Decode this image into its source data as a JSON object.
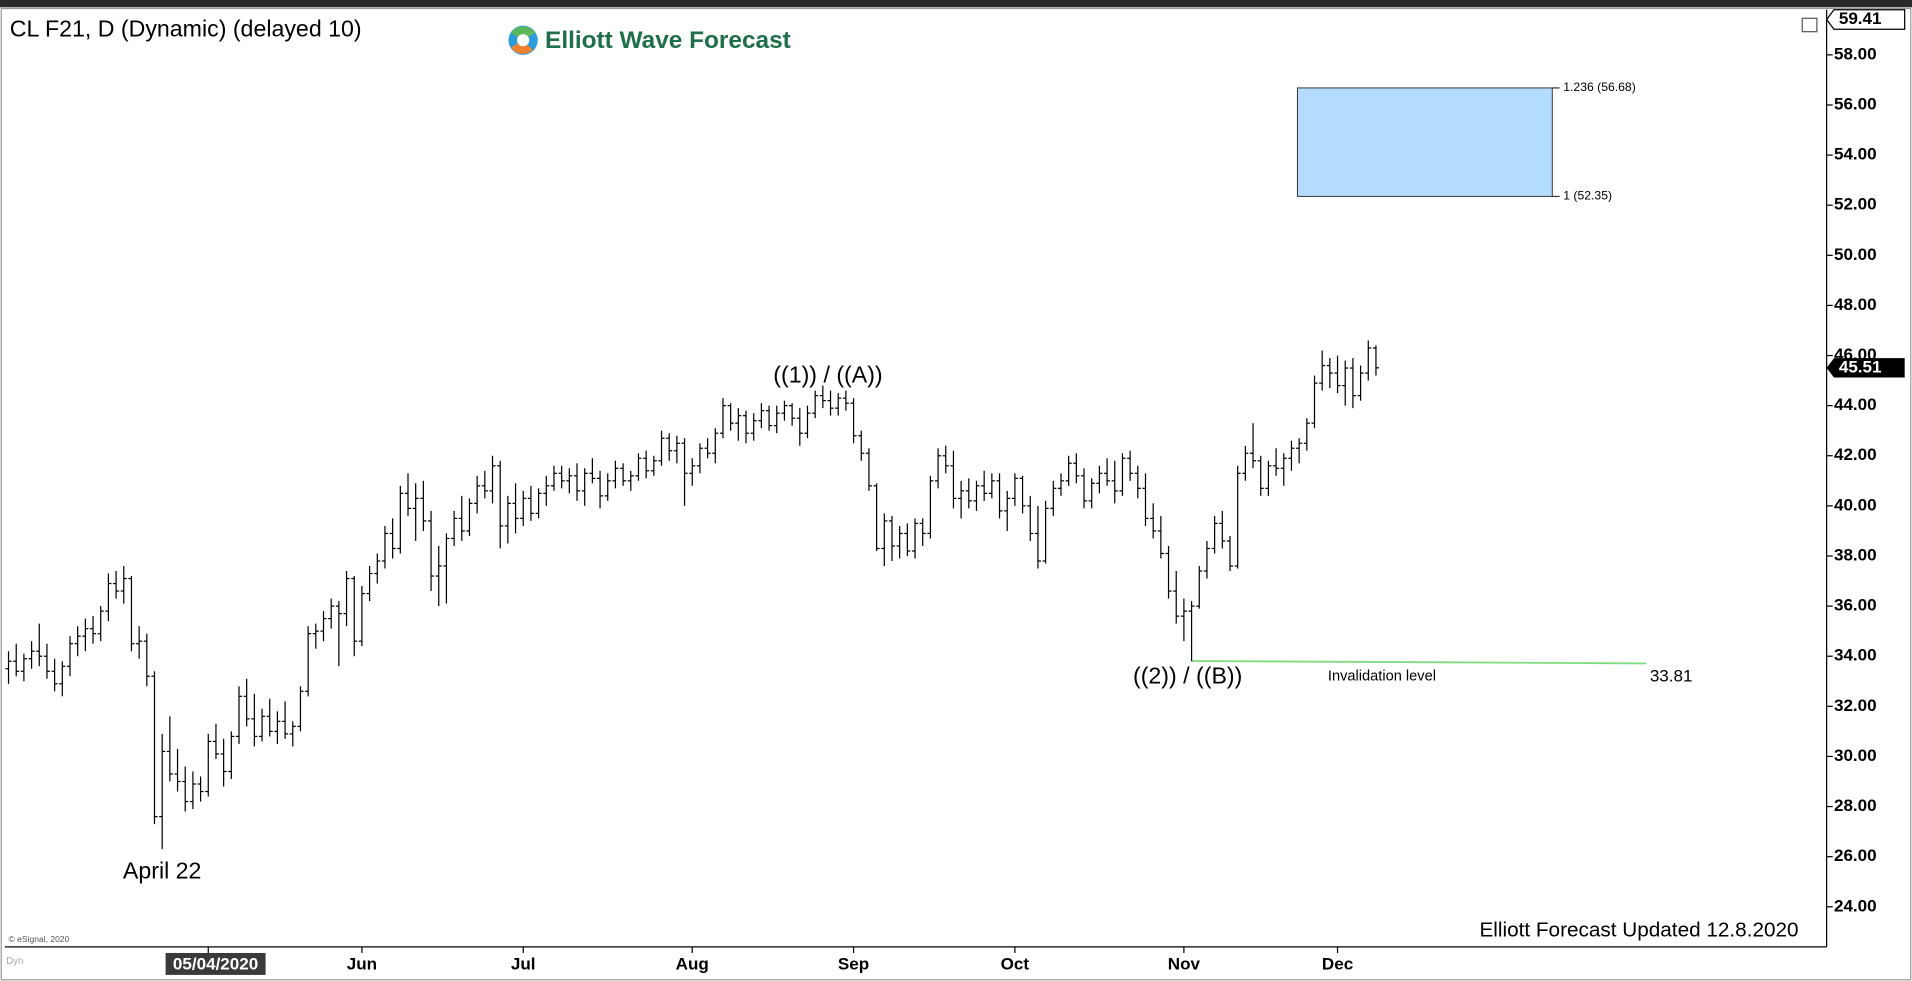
{
  "chart_data": {
    "type": "ohlc",
    "title": "CL F21, D (Dynamic) (delayed 10)",
    "logo": "Elliott Wave Forecast",
    "footer": "Elliott Forecast Updated 12.8.2020",
    "source": "© eSignal, 2020",
    "corner": "Dyn",
    "color": "#000000",
    "ylim": [
      22.4,
      59.8
    ],
    "yticks": [
      {
        "value": 24,
        "label": "24.00"
      },
      {
        "value": 26,
        "label": "26.00"
      },
      {
        "value": 28,
        "label": "28.00"
      },
      {
        "value": 30,
        "label": "30.00"
      },
      {
        "value": 32,
        "label": "32.00"
      },
      {
        "value": 34,
        "label": "34.00"
      },
      {
        "value": 36,
        "label": "36.00"
      },
      {
        "value": 38,
        "label": "38.00"
      },
      {
        "value": 40,
        "label": "40.00"
      },
      {
        "value": 42,
        "label": "42.00"
      },
      {
        "value": 44,
        "label": "44.00"
      },
      {
        "value": 46,
        "label": "46.00"
      },
      {
        "value": 48,
        "label": "48.00"
      },
      {
        "value": 50,
        "label": "50.00"
      },
      {
        "value": 52,
        "label": "52.00"
      },
      {
        "value": 54,
        "label": "54.00"
      },
      {
        "value": 56,
        "label": "56.00"
      },
      {
        "value": 58,
        "label": "58.00"
      }
    ],
    "xticks": [
      {
        "value": 26,
        "label": "05/04/2020"
      },
      {
        "value": 46,
        "label": "Jun"
      },
      {
        "value": 67,
        "label": "Jul"
      },
      {
        "value": 89,
        "label": "Aug"
      },
      {
        "value": 110,
        "label": "Sep"
      },
      {
        "value": 131,
        "label": "Oct"
      },
      {
        "value": 153,
        "label": "Nov"
      },
      {
        "value": 173,
        "label": "Dec"
      }
    ],
    "scale_high": 59.41,
    "last_price": 45.51,
    "target_box": {
      "color": "#b3dcff",
      "levels": [
        {
          "value": 56.68,
          "label": "1.236 (56.68)"
        },
        {
          "value": 52.35,
          "label": "1 (52.35)"
        }
      ]
    },
    "invalidation": {
      "value": 33.81,
      "label": "Invalidation level",
      "color": "#7ddc7d"
    },
    "annotations": [
      "April 22",
      "((1)) / ((A))",
      "((2)) / ((B))"
    ],
    "bars": [
      [
        33.5,
        34.2,
        32.9,
        33.8
      ],
      [
        33.8,
        34.5,
        33.2,
        33.4
      ],
      [
        33.4,
        34.1,
        33.0,
        33.9
      ],
      [
        33.9,
        34.6,
        33.5,
        34.2
      ],
      [
        34.2,
        35.3,
        33.6,
        34.0
      ],
      [
        34.0,
        34.5,
        33.1,
        33.4
      ],
      [
        33.4,
        33.9,
        32.6,
        32.9
      ],
      [
        32.9,
        33.8,
        32.4,
        33.6
      ],
      [
        33.6,
        34.8,
        33.2,
        34.5
      ],
      [
        34.5,
        35.2,
        34.0,
        34.8
      ],
      [
        34.8,
        35.5,
        34.2,
        35.1
      ],
      [
        35.1,
        35.6,
        34.5,
        34.9
      ],
      [
        34.9,
        36.0,
        34.6,
        35.8
      ],
      [
        35.8,
        37.3,
        35.4,
        36.9
      ],
      [
        36.9,
        37.4,
        36.3,
        36.6
      ],
      [
        36.6,
        37.6,
        36.1,
        37.1
      ],
      [
        37.1,
        37.2,
        34.2,
        34.5
      ],
      [
        34.5,
        35.2,
        33.9,
        34.6
      ],
      [
        34.6,
        34.9,
        32.8,
        33.2
      ],
      [
        33.2,
        33.4,
        27.3,
        27.6
      ],
      [
        27.6,
        30.9,
        26.3,
        30.2
      ],
      [
        30.2,
        31.6,
        29.0,
        29.3
      ],
      [
        29.3,
        30.3,
        28.6,
        29.0
      ],
      [
        29.0,
        29.6,
        27.8,
        28.2
      ],
      [
        28.2,
        29.4,
        27.9,
        28.9
      ],
      [
        28.9,
        29.2,
        28.2,
        28.6
      ],
      [
        28.6,
        30.9,
        28.4,
        30.6
      ],
      [
        30.6,
        31.3,
        29.9,
        30.1
      ],
      [
        30.1,
        30.7,
        28.8,
        29.4
      ],
      [
        29.4,
        31.0,
        29.1,
        30.8
      ],
      [
        30.8,
        32.8,
        30.5,
        32.4
      ],
      [
        32.4,
        33.1,
        31.2,
        31.5
      ],
      [
        31.5,
        32.5,
        30.4,
        30.8
      ],
      [
        30.8,
        31.9,
        30.6,
        31.6
      ],
      [
        31.6,
        32.3,
        30.8,
        31.0
      ],
      [
        31.0,
        31.8,
        30.5,
        31.4
      ],
      [
        31.4,
        32.2,
        30.7,
        30.9
      ],
      [
        30.9,
        31.4,
        30.4,
        31.2
      ],
      [
        31.2,
        32.8,
        31.0,
        32.6
      ],
      [
        32.6,
        35.2,
        32.4,
        34.9
      ],
      [
        34.9,
        35.3,
        34.3,
        35.0
      ],
      [
        35.0,
        35.8,
        34.6,
        35.5
      ],
      [
        35.5,
        36.3,
        35.1,
        36.0
      ],
      [
        36.0,
        36.2,
        33.6,
        35.7
      ],
      [
        35.7,
        37.4,
        35.2,
        37.1
      ],
      [
        37.1,
        37.2,
        34.0,
        34.6
      ],
      [
        34.6,
        36.8,
        34.4,
        36.5
      ],
      [
        36.5,
        37.6,
        36.2,
        37.3
      ],
      [
        37.3,
        38.1,
        36.9,
        37.8
      ],
      [
        37.8,
        39.2,
        37.5,
        38.9
      ],
      [
        38.9,
        39.5,
        37.9,
        38.3
      ],
      [
        38.3,
        40.8,
        38.1,
        40.5
      ],
      [
        40.5,
        41.3,
        39.6,
        39.9
      ],
      [
        39.9,
        40.9,
        38.6,
        40.3
      ],
      [
        40.3,
        41.0,
        39.0,
        39.4
      ],
      [
        39.4,
        39.8,
        36.6,
        37.2
      ],
      [
        37.2,
        38.4,
        36.0,
        37.6
      ],
      [
        37.6,
        38.9,
        36.1,
        38.7
      ],
      [
        38.7,
        39.8,
        38.4,
        39.5
      ],
      [
        39.5,
        40.4,
        38.6,
        39.0
      ],
      [
        39.0,
        40.3,
        38.8,
        40.1
      ],
      [
        40.1,
        41.2,
        39.7,
        40.8
      ],
      [
        40.8,
        41.4,
        40.3,
        40.6
      ],
      [
        40.6,
        42.0,
        40.1,
        41.6
      ],
      [
        41.6,
        41.8,
        38.3,
        39.2
      ],
      [
        39.2,
        40.4,
        38.5,
        40.1
      ],
      [
        40.1,
        40.9,
        38.9,
        39.5
      ],
      [
        39.5,
        40.6,
        39.2,
        40.3
      ],
      [
        40.3,
        40.8,
        39.4,
        39.7
      ],
      [
        39.7,
        40.7,
        39.5,
        40.5
      ],
      [
        40.5,
        41.2,
        40.0,
        40.8
      ],
      [
        40.8,
        41.6,
        40.6,
        41.3
      ],
      [
        41.3,
        41.6,
        40.7,
        41.0
      ],
      [
        41.0,
        41.5,
        40.5,
        41.2
      ],
      [
        41.2,
        41.7,
        40.2,
        40.6
      ],
      [
        40.6,
        41.5,
        40.0,
        41.3
      ],
      [
        41.3,
        41.9,
        40.9,
        41.1
      ],
      [
        41.1,
        41.4,
        39.9,
        40.4
      ],
      [
        40.4,
        41.3,
        40.2,
        41.0
      ],
      [
        41.0,
        41.8,
        40.7,
        41.5
      ],
      [
        41.5,
        41.7,
        40.8,
        41.0
      ],
      [
        41.0,
        41.4,
        40.6,
        41.2
      ],
      [
        41.2,
        42.1,
        41.0,
        41.9
      ],
      [
        41.9,
        42.2,
        41.1,
        41.4
      ],
      [
        41.4,
        42.0,
        41.2,
        41.8
      ],
      [
        41.8,
        43.0,
        41.6,
        42.7
      ],
      [
        42.7,
        42.9,
        41.8,
        42.2
      ],
      [
        42.2,
        42.8,
        41.7,
        42.5
      ],
      [
        42.5,
        42.7,
        40.0,
        41.3
      ],
      [
        41.3,
        41.9,
        40.8,
        41.6
      ],
      [
        41.6,
        42.5,
        41.3,
        42.3
      ],
      [
        42.3,
        42.7,
        41.9,
        42.1
      ],
      [
        42.1,
        43.1,
        41.7,
        42.9
      ],
      [
        42.9,
        44.3,
        42.7,
        44.0
      ],
      [
        44.0,
        44.1,
        43.0,
        43.3
      ],
      [
        43.3,
        43.9,
        42.6,
        43.6
      ],
      [
        43.6,
        43.8,
        42.5,
        42.9
      ],
      [
        42.9,
        43.7,
        42.6,
        43.4
      ],
      [
        43.4,
        44.1,
        43.1,
        43.8
      ],
      [
        43.8,
        44.0,
        43.0,
        43.2
      ],
      [
        43.2,
        44.0,
        42.9,
        43.7
      ],
      [
        43.7,
        44.2,
        43.4,
        44.0
      ],
      [
        44.0,
        44.1,
        43.2,
        43.5
      ],
      [
        43.5,
        43.9,
        42.4,
        42.9
      ],
      [
        42.9,
        44.0,
        42.7,
        43.7
      ],
      [
        43.7,
        44.6,
        43.5,
        44.4
      ],
      [
        44.4,
        44.8,
        43.9,
        44.2
      ],
      [
        44.2,
        44.6,
        43.6,
        43.9
      ],
      [
        43.9,
        44.5,
        43.6,
        44.3
      ],
      [
        44.3,
        44.6,
        43.8,
        44.1
      ],
      [
        44.1,
        44.3,
        42.5,
        42.8
      ],
      [
        42.8,
        43.0,
        41.8,
        42.1
      ],
      [
        42.1,
        42.3,
        40.6,
        40.8
      ],
      [
        40.8,
        40.9,
        38.2,
        38.3
      ],
      [
        38.3,
        39.7,
        37.6,
        39.4
      ],
      [
        39.4,
        39.6,
        37.8,
        38.4
      ],
      [
        38.4,
        39.2,
        37.9,
        38.9
      ],
      [
        38.9,
        39.3,
        38.0,
        38.2
      ],
      [
        38.2,
        39.5,
        37.9,
        39.3
      ],
      [
        39.3,
        39.5,
        38.4,
        38.9
      ],
      [
        38.9,
        41.2,
        38.7,
        41.0
      ],
      [
        41.0,
        42.3,
        40.7,
        42.0
      ],
      [
        42.0,
        42.4,
        41.3,
        41.6
      ],
      [
        41.6,
        42.2,
        39.9,
        40.3
      ],
      [
        40.3,
        41.0,
        39.5,
        40.6
      ],
      [
        40.6,
        41.1,
        39.9,
        40.2
      ],
      [
        40.2,
        41.0,
        39.8,
        40.8
      ],
      [
        40.8,
        41.4,
        40.2,
        40.5
      ],
      [
        40.5,
        41.3,
        40.3,
        41.0
      ],
      [
        41.0,
        41.3,
        39.5,
        39.8
      ],
      [
        39.8,
        40.6,
        39.0,
        40.3
      ],
      [
        40.3,
        41.3,
        40.0,
        41.1
      ],
      [
        41.1,
        41.2,
        39.7,
        40.0
      ],
      [
        40.0,
        40.4,
        38.6,
        38.9
      ],
      [
        38.9,
        40.0,
        37.5,
        37.8
      ],
      [
        37.8,
        40.2,
        37.7,
        39.9
      ],
      [
        39.9,
        41.0,
        39.6,
        40.7
      ],
      [
        40.7,
        41.3,
        40.4,
        41.0
      ],
      [
        41.0,
        42.0,
        40.8,
        41.7
      ],
      [
        41.7,
        42.1,
        40.9,
        41.2
      ],
      [
        41.2,
        41.5,
        39.9,
        40.2
      ],
      [
        40.2,
        41.1,
        39.9,
        40.9
      ],
      [
        40.9,
        41.6,
        40.5,
        41.3
      ],
      [
        41.3,
        41.9,
        40.8,
        41.0
      ],
      [
        41.0,
        41.8,
        40.1,
        40.6
      ],
      [
        40.6,
        42.1,
        40.4,
        41.9
      ],
      [
        41.9,
        42.2,
        41.0,
        41.3
      ],
      [
        41.3,
        41.6,
        40.3,
        40.7
      ],
      [
        40.7,
        41.3,
        39.2,
        39.5
      ],
      [
        39.5,
        40.1,
        38.7,
        39.0
      ],
      [
        39.0,
        39.6,
        37.9,
        38.1
      ],
      [
        38.1,
        38.4,
        36.3,
        36.6
      ],
      [
        36.6,
        37.4,
        35.3,
        35.6
      ],
      [
        35.6,
        36.3,
        34.6,
        35.8
      ],
      [
        35.8,
        36.2,
        33.8,
        36.0
      ],
      [
        36.0,
        37.6,
        35.9,
        37.4
      ],
      [
        37.4,
        38.6,
        37.1,
        38.3
      ],
      [
        38.3,
        39.6,
        38.1,
        39.3
      ],
      [
        39.3,
        39.8,
        38.3,
        38.6
      ],
      [
        38.6,
        38.8,
        37.4,
        37.6
      ],
      [
        37.6,
        41.6,
        37.5,
        41.3
      ],
      [
        41.3,
        42.4,
        41.0,
        42.1
      ],
      [
        42.1,
        43.3,
        41.5,
        41.8
      ],
      [
        41.8,
        42.0,
        40.4,
        40.7
      ],
      [
        40.7,
        41.8,
        40.4,
        41.6
      ],
      [
        41.6,
        42.3,
        41.2,
        41.5
      ],
      [
        41.5,
        42.1,
        40.8,
        41.9
      ],
      [
        41.9,
        42.6,
        41.4,
        42.3
      ],
      [
        42.3,
        42.7,
        41.7,
        42.5
      ],
      [
        42.5,
        43.5,
        42.2,
        43.3
      ],
      [
        43.3,
        45.2,
        43.1,
        44.9
      ],
      [
        44.9,
        46.2,
        44.6,
        45.6
      ],
      [
        45.6,
        45.9,
        44.7,
        45.3
      ],
      [
        45.3,
        46.0,
        44.5,
        44.8
      ],
      [
        44.8,
        45.8,
        44.0,
        45.5
      ],
      [
        45.5,
        45.9,
        43.9,
        44.4
      ],
      [
        44.4,
        45.6,
        44.2,
        45.3
      ],
      [
        45.3,
        46.6,
        45.0,
        46.3
      ],
      [
        46.3,
        46.4,
        45.2,
        45.51
      ]
    ]
  }
}
